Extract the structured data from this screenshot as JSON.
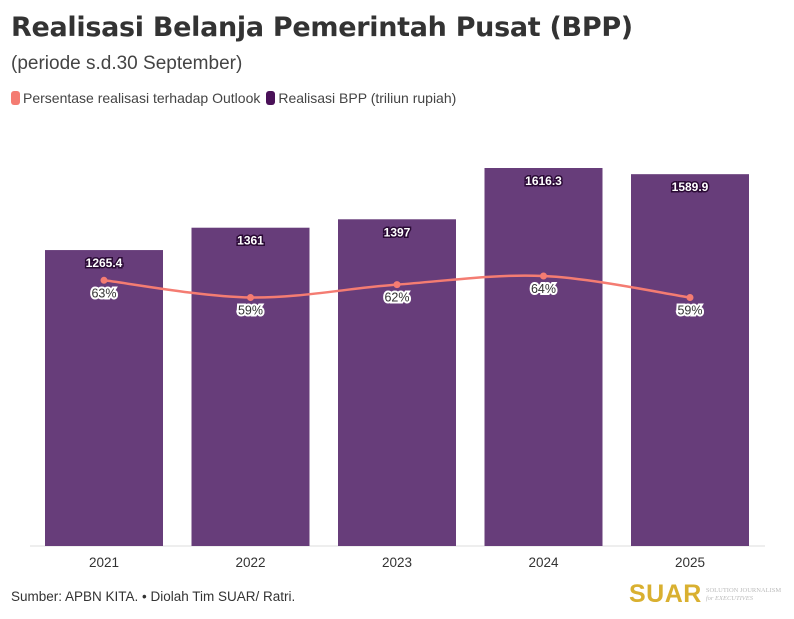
{
  "title": "Realisasi Belanja Pemerintah Pusat (BPP)",
  "subtitle": "(periode s.d.30 September)",
  "source": "Sumber: APBN KITA. • Diolah Tim SUAR/ Ratri.",
  "logo": {
    "brand": "SUAR",
    "tagline_1": "SOLUTION JOURNALISM",
    "tagline_2": "for EXECUTIVES"
  },
  "chart_data": {
    "type": "bar",
    "categories": [
      "2021",
      "2022",
      "2023",
      "2024",
      "2025"
    ],
    "series": [
      {
        "name": "Realisasi BPP (triliun rupiah)",
        "type": "bar",
        "values": [
          1265.4,
          1361,
          1397,
          1616.3,
          1589.9
        ],
        "labels": [
          "1265.4",
          "1361",
          "1397",
          "1616.3",
          "1589.9"
        ],
        "color": "#673d7a",
        "legend_color": "#4a1158"
      },
      {
        "name": "Persentase realisasi terhadap Outlook",
        "type": "line",
        "values": [
          63,
          59,
          62,
          64,
          59
        ],
        "labels": [
          "63%",
          "59%",
          "62%",
          "64%",
          "59%"
        ],
        "color": "#f47c72"
      }
    ],
    "ylim": [
      0,
      1616.3
    ],
    "grid": false,
    "legend": "top-left"
  }
}
